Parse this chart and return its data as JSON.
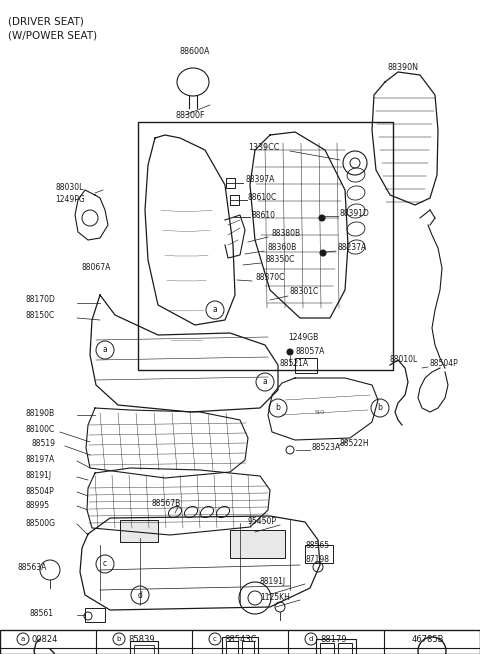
{
  "bg_color": "#f5f5f5",
  "line_color": "#1a1a1a",
  "text_color": "#1a1a1a",
  "title1": "(DRIVER SEAT)",
  "title2": "(W/POWER SEAT)",
  "fs": 6.0,
  "fs_title": 7.0,
  "legend_labels": [
    "a",
    "b",
    "c",
    "d",
    ""
  ],
  "legend_codes": [
    "00824",
    "85839",
    "88543C",
    "88179",
    "46785B"
  ]
}
